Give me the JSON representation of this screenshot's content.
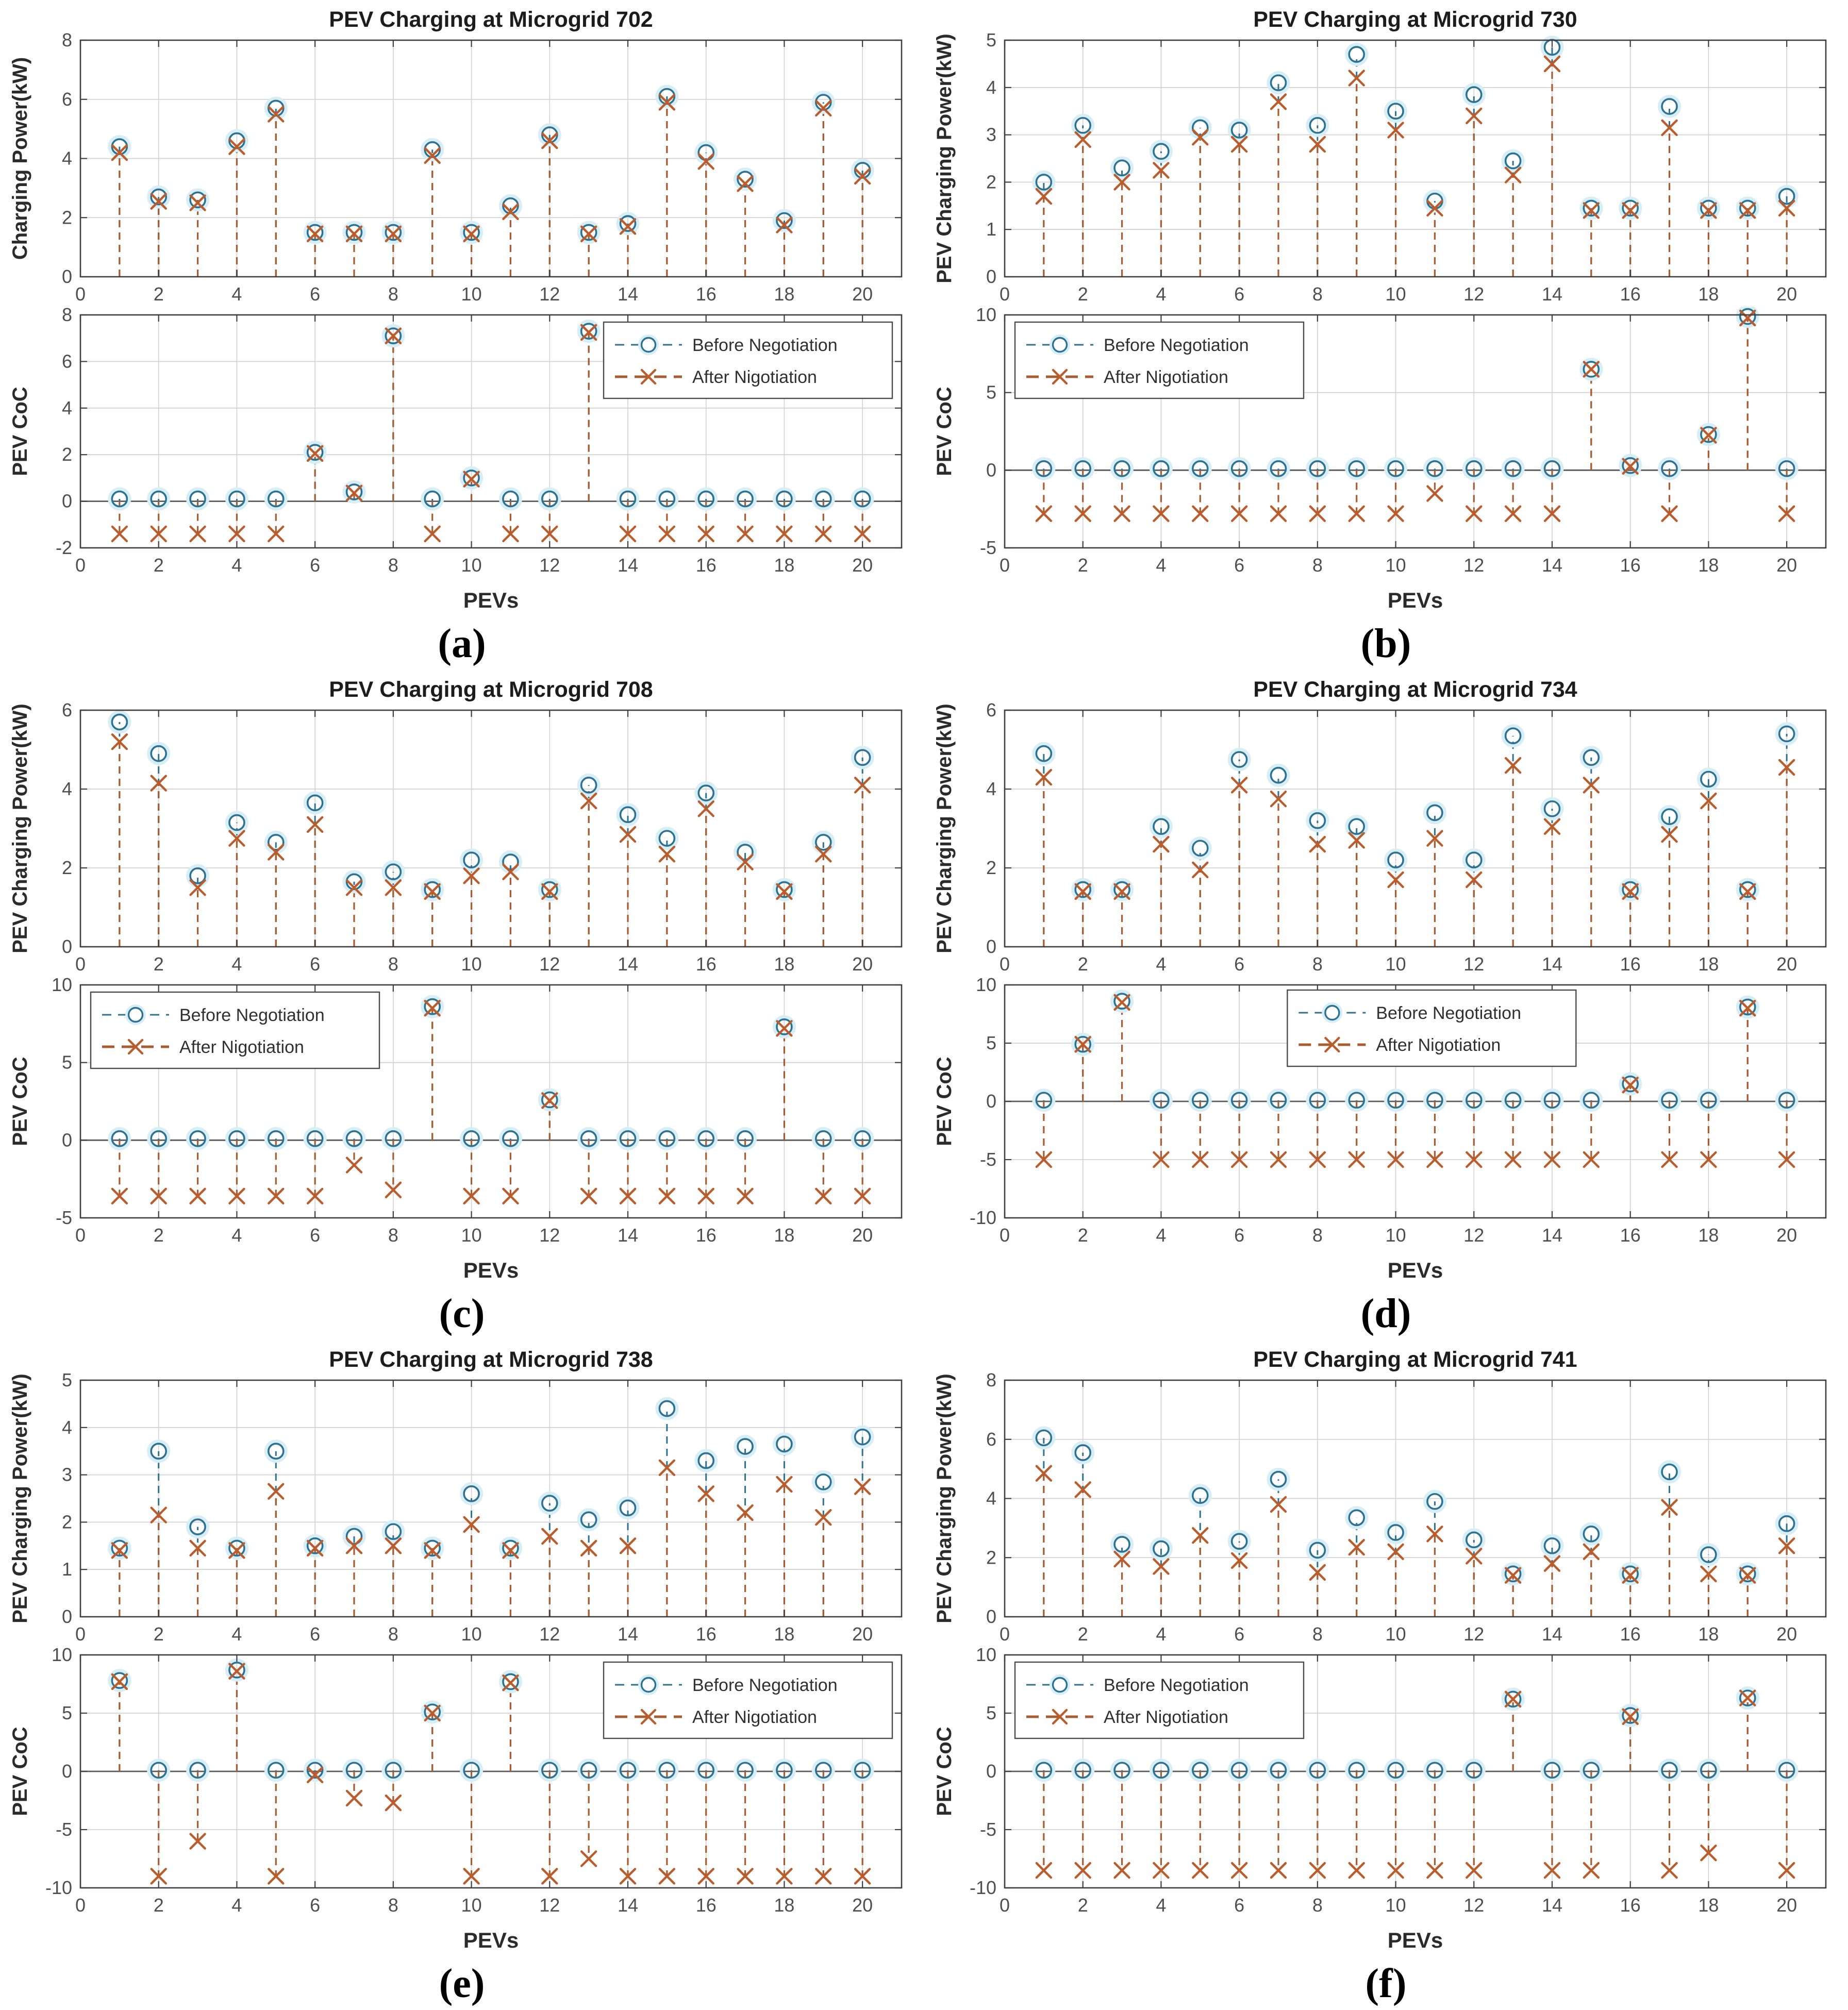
{
  "legend": {
    "before_label": "Before Negotiation",
    "after_label": "After Nigotiation"
  },
  "colors": {
    "before": "#2e7291",
    "before_halo": "#d7eef7",
    "after": "#bb5c2c",
    "after_stem": "#a85c30",
    "grid": "#d2d2d2",
    "axis": "#3f3f3f",
    "baseline": "#5a5a5a",
    "tick_label": "#4f4f4f",
    "text": "#1c1c1c"
  },
  "axes_shared": {
    "xlim": [
      0,
      21
    ],
    "xticks": [
      0,
      2,
      4,
      6,
      8,
      10,
      12,
      14,
      16,
      18,
      20
    ],
    "x_values": [
      1,
      2,
      3,
      4,
      5,
      6,
      7,
      8,
      9,
      10,
      11,
      12,
      13,
      14,
      15,
      16,
      17,
      18,
      19,
      20
    ],
    "xlabel": "PEVs"
  },
  "chart_data": [
    {
      "caption": "(a)",
      "title": "PEV Charging at Microgrid 702",
      "top": {
        "type": "stem",
        "ylabel": "Charging Power(kW)",
        "ylim": [
          0,
          8
        ],
        "yticks": [
          0,
          2,
          4,
          6,
          8
        ],
        "series": [
          {
            "name": "Before Negotiation",
            "values": [
              4.4,
              2.7,
              2.6,
              4.6,
              5.7,
              1.5,
              1.5,
              1.5,
              4.3,
              1.5,
              2.4,
              4.8,
              1.5,
              1.8,
              6.1,
              4.2,
              3.3,
              1.9,
              5.9,
              3.6
            ]
          },
          {
            "name": "After Nigotiation",
            "values": [
              4.2,
              2.55,
              2.5,
              4.4,
              5.5,
              1.45,
              1.45,
              1.45,
              4.1,
              1.45,
              2.2,
              4.6,
              1.45,
              1.7,
              5.9,
              3.9,
              3.15,
              1.75,
              5.7,
              3.4
            ]
          }
        ]
      },
      "bottom": {
        "type": "stem",
        "ylabel": "PEV CoC",
        "xlabel": "PEVs",
        "ylim": [
          -2,
          8
        ],
        "yticks": [
          -2,
          0,
          2,
          4,
          6,
          8
        ],
        "legend_pos": "top-right",
        "series": [
          {
            "name": "Before Negotiation",
            "values": [
              0.1,
              0.1,
              0.1,
              0.1,
              0.1,
              2.1,
              0.4,
              7.1,
              0.1,
              1.0,
              0.1,
              0.1,
              7.3,
              0.1,
              0.1,
              0.1,
              0.1,
              0.1,
              0.1,
              0.1
            ]
          },
          {
            "name": "After Nigotiation",
            "values": [
              -1.4,
              -1.4,
              -1.4,
              -1.4,
              -1.4,
              2.05,
              0.35,
              7.1,
              -1.4,
              0.95,
              -1.4,
              -1.4,
              7.25,
              -1.4,
              -1.4,
              -1.4,
              -1.4,
              -1.4,
              -1.4,
              -1.4
            ]
          }
        ]
      }
    },
    {
      "caption": "(b)",
      "title": "PEV Charging at Microgrid 730",
      "top": {
        "type": "stem",
        "ylabel": "PEV Charging Power(kW)",
        "ylim": [
          0,
          5
        ],
        "yticks": [
          0,
          1,
          2,
          3,
          4,
          5
        ],
        "series": [
          {
            "name": "Before Negotiation",
            "values": [
              2.0,
              3.2,
              2.3,
              2.65,
              3.15,
              3.1,
              4.1,
              3.2,
              4.7,
              3.5,
              1.6,
              3.85,
              2.45,
              4.85,
              1.45,
              1.45,
              3.6,
              1.45,
              1.45,
              1.7
            ]
          },
          {
            "name": "After Nigotiation",
            "values": [
              1.7,
              2.9,
              2.0,
              2.25,
              2.95,
              2.8,
              3.7,
              2.8,
              4.2,
              3.1,
              1.45,
              3.4,
              2.15,
              4.5,
              1.4,
              1.4,
              3.15,
              1.4,
              1.4,
              1.45
            ]
          }
        ]
      },
      "bottom": {
        "type": "stem",
        "ylabel": "PEV CoC",
        "xlabel": "PEVs",
        "ylim": [
          -5,
          10
        ],
        "yticks": [
          -5,
          0,
          5,
          10
        ],
        "legend_pos": "top-left",
        "series": [
          {
            "name": "Before Negotiation",
            "values": [
              0.1,
              0.1,
              0.1,
              0.1,
              0.1,
              0.1,
              0.1,
              0.1,
              0.1,
              0.1,
              0.1,
              0.1,
              0.1,
              0.1,
              6.5,
              0.3,
              0.1,
              2.3,
              9.9,
              0.1
            ]
          },
          {
            "name": "After Nigotiation",
            "values": [
              -2.8,
              -2.8,
              -2.8,
              -2.8,
              -2.8,
              -2.8,
              -2.8,
              -2.8,
              -2.8,
              -2.8,
              -1.5,
              -2.8,
              -2.8,
              -2.8,
              6.5,
              0.25,
              -2.8,
              2.25,
              9.8,
              -2.8
            ]
          }
        ]
      }
    },
    {
      "caption": "(c)",
      "title": "PEV Charging at Microgrid 708",
      "top": {
        "type": "stem",
        "ylabel": "PEV Charging Power(kW)",
        "ylim": [
          0,
          6
        ],
        "yticks": [
          0,
          2,
          4,
          6
        ],
        "series": [
          {
            "name": "Before Negotiation",
            "values": [
              5.7,
              4.9,
              1.8,
              3.15,
              2.65,
              3.65,
              1.65,
              1.9,
              1.45,
              2.2,
              2.15,
              1.45,
              4.1,
              3.35,
              2.75,
              3.9,
              2.4,
              1.45,
              2.65,
              4.8
            ]
          },
          {
            "name": "After Nigotiation",
            "values": [
              5.2,
              4.15,
              1.5,
              2.75,
              2.4,
              3.1,
              1.5,
              1.5,
              1.4,
              1.8,
              1.9,
              1.4,
              3.7,
              2.85,
              2.35,
              3.5,
              2.15,
              1.4,
              2.35,
              4.1
            ]
          }
        ]
      },
      "bottom": {
        "type": "stem",
        "ylabel": "PEV CoC",
        "xlabel": "PEVs",
        "ylim": [
          -5,
          10
        ],
        "yticks": [
          -5,
          0,
          5,
          10
        ],
        "legend_pos": "top-left",
        "series": [
          {
            "name": "Before Negotiation",
            "values": [
              0.1,
              0.1,
              0.1,
              0.1,
              0.1,
              0.1,
              0.1,
              0.1,
              8.6,
              0.1,
              0.1,
              2.6,
              0.1,
              0.1,
              0.1,
              0.1,
              0.1,
              7.3,
              0.1,
              0.1
            ]
          },
          {
            "name": "After Nigotiation",
            "values": [
              -3.6,
              -3.6,
              -3.6,
              -3.6,
              -3.6,
              -3.6,
              -1.6,
              -3.2,
              8.5,
              -3.6,
              -3.6,
              2.55,
              -3.6,
              -3.6,
              -3.6,
              -3.6,
              -3.6,
              7.2,
              -3.6,
              -3.6
            ]
          }
        ]
      }
    },
    {
      "caption": "(d)",
      "title": "PEV Charging at Microgrid 734",
      "top": {
        "type": "stem",
        "ylabel": "PEV Charging Power(kW)",
        "ylim": [
          0,
          6
        ],
        "yticks": [
          0,
          2,
          4,
          6
        ],
        "series": [
          {
            "name": "Before Negotiation",
            "values": [
              4.9,
              1.45,
              1.45,
              3.05,
              2.5,
              4.75,
              4.35,
              3.2,
              3.05,
              2.2,
              3.4,
              2.2,
              5.35,
              3.5,
              4.8,
              1.45,
              3.3,
              4.25,
              1.45,
              5.4
            ]
          },
          {
            "name": "After Nigotiation",
            "values": [
              4.3,
              1.4,
              1.4,
              2.6,
              1.95,
              4.1,
              3.75,
              2.6,
              2.7,
              1.7,
              2.75,
              1.7,
              4.6,
              3.05,
              4.1,
              1.4,
              2.85,
              3.7,
              1.4,
              4.55
            ]
          }
        ]
      },
      "bottom": {
        "type": "stem",
        "ylabel": "PEV CoC",
        "xlabel": "PEVs",
        "ylim": [
          -10,
          10
        ],
        "yticks": [
          -10,
          -5,
          0,
          5,
          10
        ],
        "legend_pos": "top-center",
        "series": [
          {
            "name": "Before Negotiation",
            "values": [
              0.1,
              4.9,
              8.6,
              0.1,
              0.1,
              0.1,
              0.1,
              0.1,
              0.1,
              0.1,
              0.1,
              0.1,
              0.1,
              0.1,
              0.1,
              1.5,
              0.1,
              0.1,
              8.1,
              0.1
            ]
          },
          {
            "name": "After Nigotiation",
            "values": [
              -5,
              4.9,
              8.5,
              -5,
              -5,
              -5,
              -5,
              -5,
              -5,
              -5,
              -5,
              -5,
              -5,
              -5,
              -5,
              1.4,
              -5,
              -5,
              8.0,
              -5
            ]
          }
        ]
      }
    },
    {
      "caption": "(e)",
      "title": "PEV Charging at Microgrid 738",
      "top": {
        "type": "stem",
        "ylabel": "PEV Charging Power(kW)",
        "ylim": [
          0,
          5
        ],
        "yticks": [
          0,
          1,
          2,
          3,
          4,
          5
        ],
        "series": [
          {
            "name": "Before Negotiation",
            "values": [
              1.45,
              3.5,
              1.9,
              1.45,
              3.5,
              1.5,
              1.7,
              1.8,
              1.45,
              2.6,
              1.45,
              2.4,
              2.05,
              2.3,
              4.4,
              3.3,
              3.6,
              3.65,
              2.85,
              3.8
            ]
          },
          {
            "name": "After Nigotiation",
            "values": [
              1.4,
              2.15,
              1.45,
              1.4,
              2.65,
              1.45,
              1.5,
              1.5,
              1.4,
              1.95,
              1.4,
              1.7,
              1.45,
              1.5,
              3.15,
              2.6,
              2.2,
              2.8,
              2.1,
              2.75
            ]
          }
        ]
      },
      "bottom": {
        "type": "stem",
        "ylabel": "PEV CoC",
        "xlabel": "PEVs",
        "ylim": [
          -10,
          10
        ],
        "yticks": [
          -10,
          -5,
          0,
          5,
          10
        ],
        "legend_pos": "top-right",
        "series": [
          {
            "name": "Before Negotiation",
            "values": [
              7.8,
              0.1,
              0.1,
              8.7,
              0.1,
              0.1,
              0.1,
              0.1,
              5.1,
              0.1,
              7.7,
              0.1,
              0.1,
              0.1,
              0.1,
              0.1,
              0.1,
              0.1,
              0.1,
              0.1
            ]
          },
          {
            "name": "After Nigotiation",
            "values": [
              7.7,
              -9.0,
              -6.0,
              8.6,
              -9.0,
              -0.3,
              -2.3,
              -2.7,
              5.0,
              -9.0,
              7.6,
              -9.0,
              -7.5,
              -9.0,
              -9.0,
              -9.0,
              -9.0,
              -9.0,
              -9.0,
              -9.0
            ]
          }
        ]
      }
    },
    {
      "caption": "(f)",
      "title": "PEV Charging at Microgrid 741",
      "top": {
        "type": "stem",
        "ylabel": "PEV Charging Power(kW)",
        "ylim": [
          0,
          8
        ],
        "yticks": [
          0,
          2,
          4,
          6,
          8
        ],
        "series": [
          {
            "name": "Before Negotiation",
            "values": [
              6.05,
              5.55,
              2.45,
              2.3,
              4.1,
              2.55,
              4.65,
              2.25,
              3.35,
              2.85,
              3.9,
              2.6,
              1.45,
              2.4,
              2.8,
              1.45,
              4.9,
              2.1,
              1.45,
              3.15
            ]
          },
          {
            "name": "After Nigotiation",
            "values": [
              4.85,
              4.3,
              1.95,
              1.7,
              2.75,
              1.9,
              3.8,
              1.5,
              2.35,
              2.2,
              2.8,
              2.05,
              1.4,
              1.8,
              2.2,
              1.4,
              3.7,
              1.45,
              1.4,
              2.4
            ]
          }
        ]
      },
      "bottom": {
        "type": "stem",
        "ylabel": "PEV CoC",
        "xlabel": "PEVs",
        "ylim": [
          -10,
          10
        ],
        "yticks": [
          -10,
          -5,
          0,
          5,
          10
        ],
        "legend_pos": "top-left",
        "series": [
          {
            "name": "Before Negotiation",
            "values": [
              0.1,
              0.1,
              0.1,
              0.1,
              0.1,
              0.1,
              0.1,
              0.1,
              0.1,
              0.1,
              0.1,
              0.1,
              6.2,
              0.1,
              0.1,
              4.8,
              0.1,
              0.1,
              6.3,
              0.1
            ]
          },
          {
            "name": "After Nigotiation",
            "values": [
              -8.5,
              -8.5,
              -8.5,
              -8.5,
              -8.5,
              -8.5,
              -8.5,
              -8.5,
              -8.5,
              -8.5,
              -8.5,
              -8.5,
              6.2,
              -8.5,
              -8.5,
              4.7,
              -8.5,
              -7.0,
              6.3,
              -8.5
            ]
          }
        ]
      }
    }
  ]
}
